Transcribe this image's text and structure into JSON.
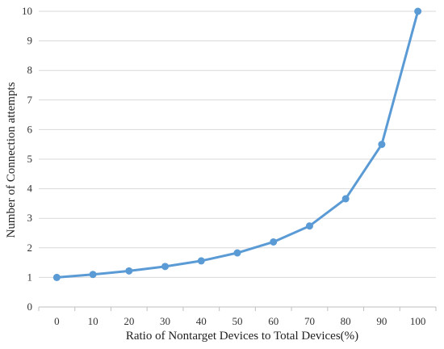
{
  "chart_data": {
    "type": "line",
    "title": "",
    "xlabel": "Ratio of Nontarget Devices to Total Devices(%)",
    "ylabel": "Number of Connection attempts",
    "x": [
      0,
      10,
      20,
      30,
      40,
      50,
      60,
      70,
      80,
      90,
      100
    ],
    "ylim": [
      0,
      10
    ],
    "y_ticks": [
      0,
      1,
      2,
      3,
      4,
      5,
      6,
      7,
      8,
      9,
      10
    ],
    "grid": true,
    "legend": "none",
    "series": [
      {
        "color": "#5b9bd5",
        "values": [
          1.0,
          1.1,
          1.22,
          1.37,
          1.56,
          1.83,
          2.2,
          2.74,
          3.66,
          5.5,
          10.0
        ]
      }
    ]
  }
}
